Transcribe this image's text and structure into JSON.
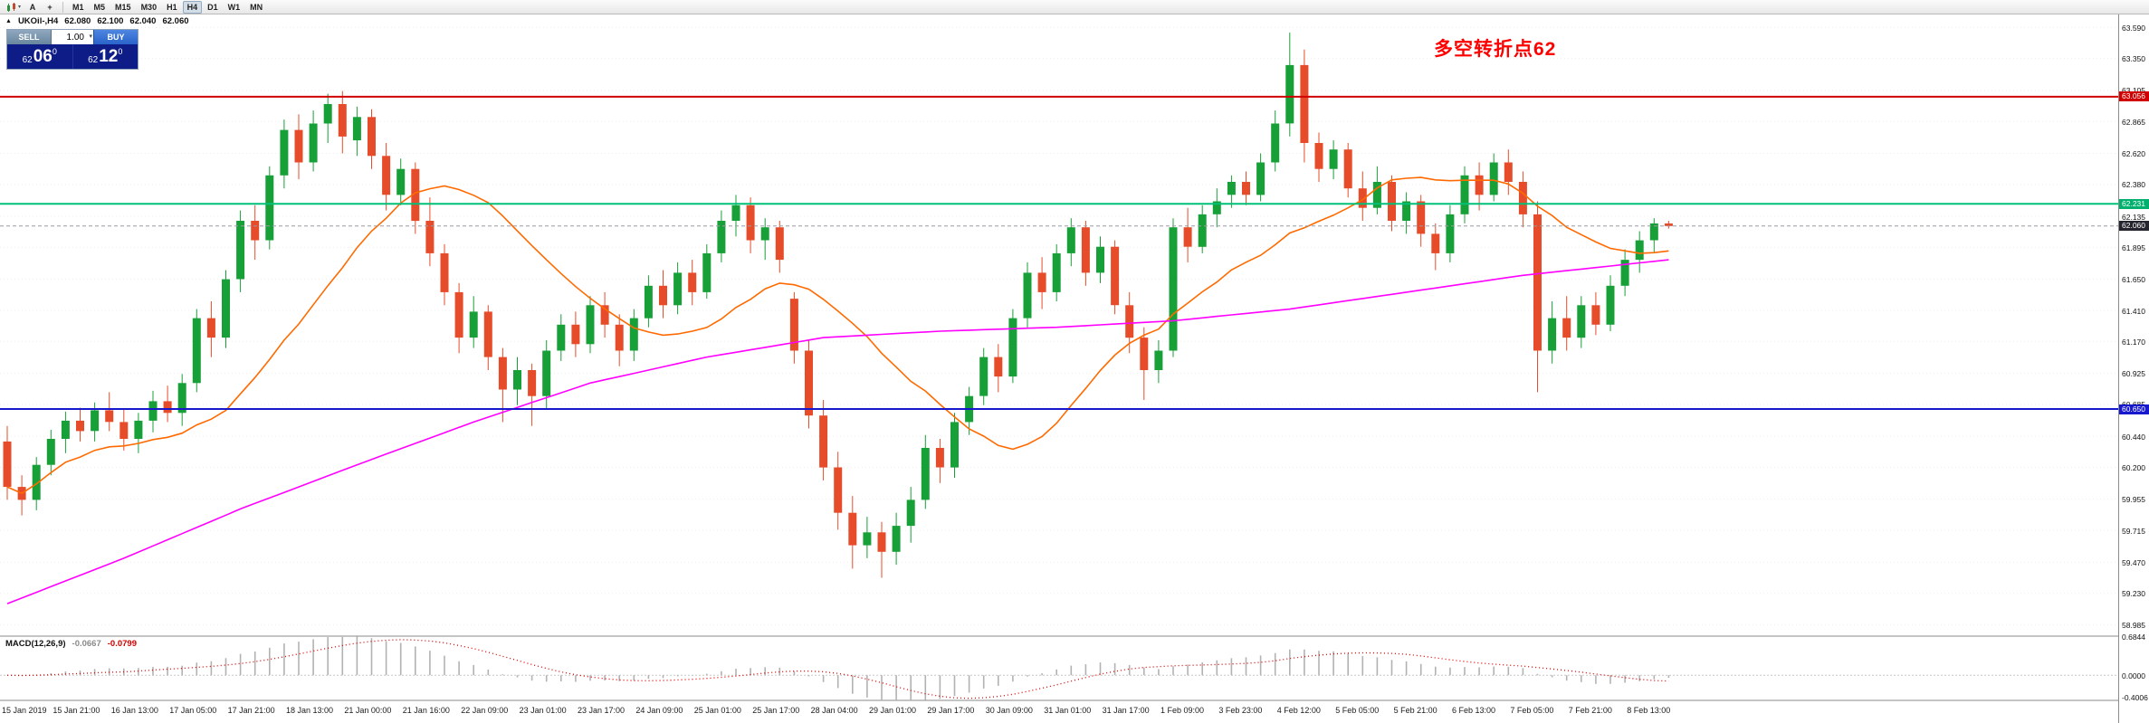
{
  "toolbar": {
    "timeframes": [
      "M1",
      "M5",
      "M15",
      "M30",
      "H1",
      "H4",
      "D1",
      "W1",
      "MN"
    ],
    "active_timeframe": "H4",
    "cursor_icon_label": "A",
    "crosshair_icon_label": "+",
    "chart_dropdown_caret": "▾"
  },
  "symbol_header": {
    "marker": "▲",
    "symbol": "UKOil-,H4",
    "open": "62.080",
    "high": "62.100",
    "low": "62.040",
    "close": "62.060"
  },
  "trade_panel": {
    "sell_label": "SELL",
    "buy_label": "BUY",
    "lot_size": "1.00",
    "spinner": "▾",
    "sell_price": {
      "small": "62",
      "big": "06",
      "sup": "0"
    },
    "buy_price": {
      "small": "62",
      "big": "12",
      "sup": "0"
    }
  },
  "annotation": {
    "text": "多空转折点62",
    "color": "#ff0000"
  },
  "price_axis": {
    "labels": [
      "63.590",
      "63.350",
      "63.105",
      "62.865",
      "62.620",
      "62.380",
      "62.135",
      "61.895",
      "61.650",
      "61.410",
      "61.170",
      "60.925",
      "60.685",
      "60.440",
      "60.200",
      "59.955",
      "59.715",
      "59.470",
      "59.230",
      "58.985"
    ]
  },
  "time_axis": {
    "labels": [
      "15 Jan 2019",
      "15 Jan 21:00",
      "16 Jan 13:00",
      "17 Jan 05:00",
      "17 Jan 21:00",
      "18 Jan 13:00",
      "21 Jan 00:00",
      "21 Jan 16:00",
      "22 Jan 09:00",
      "23 Jan 01:00",
      "23 Jan 17:00",
      "24 Jan 09:00",
      "25 Jan 01:00",
      "25 Jan 17:00",
      "28 Jan 04:00",
      "29 Jan 01:00",
      "29 Jan 17:00",
      "30 Jan 09:00",
      "31 Jan 01:00",
      "31 Jan 17:00",
      "1 Feb 09:00",
      "3 Feb 23:00",
      "4 Feb 12:00",
      "5 Feb 05:00",
      "5 Feb 21:00",
      "6 Feb 13:00",
      "7 Feb 05:00",
      "7 Feb 21:00",
      "8 Feb 13:00"
    ]
  },
  "hlines": [
    {
      "price": 63.056,
      "label": "63.056",
      "color": "#d10000",
      "badge": "#d10000",
      "width": 2,
      "style": "solid"
    },
    {
      "price": 62.231,
      "label": "62.231",
      "color": "#00c079",
      "badge": "#00b06e",
      "width": 2,
      "style": "solid"
    },
    {
      "price": 62.06,
      "label": "62.060",
      "color": "#9a9aa2",
      "badge": "#24242e",
      "width": 1,
      "style": "dashed"
    },
    {
      "price": 60.65,
      "label": "60.650",
      "color": "#1717cd",
      "badge": "#1717cd",
      "width": 2,
      "style": "solid"
    }
  ],
  "chart_data": {
    "type": "candlestick",
    "symbol": "UKOil",
    "timeframe": "H4",
    "price_range": [
      58.9,
      63.69
    ],
    "up_color": "#18a038",
    "down_color": "#e74c2a",
    "bars": [
      [
        60.4,
        60.52,
        59.95,
        60.05
      ],
      [
        60.05,
        60.14,
        59.83,
        59.95
      ],
      [
        59.95,
        60.28,
        59.87,
        60.22
      ],
      [
        60.22,
        60.49,
        60.14,
        60.42
      ],
      [
        60.42,
        60.63,
        60.31,
        60.56
      ],
      [
        60.56,
        60.66,
        60.4,
        60.48
      ],
      [
        60.48,
        60.7,
        60.4,
        60.64
      ],
      [
        60.64,
        60.78,
        60.48,
        60.55
      ],
      [
        60.55,
        60.65,
        60.33,
        60.42
      ],
      [
        60.42,
        60.62,
        60.31,
        60.56
      ],
      [
        60.56,
        60.79,
        60.47,
        60.71
      ],
      [
        60.71,
        60.83,
        60.55,
        60.62
      ],
      [
        60.62,
        60.92,
        60.52,
        60.85
      ],
      [
        60.85,
        61.42,
        60.78,
        61.35
      ],
      [
        61.35,
        61.48,
        61.05,
        61.2
      ],
      [
        61.2,
        61.72,
        61.12,
        61.65
      ],
      [
        61.65,
        62.18,
        61.55,
        62.1
      ],
      [
        62.1,
        62.22,
        61.8,
        61.95
      ],
      [
        61.95,
        62.52,
        61.88,
        62.45
      ],
      [
        62.45,
        62.88,
        62.35,
        62.8
      ],
      [
        62.8,
        62.92,
        62.42,
        62.55
      ],
      [
        62.55,
        62.95,
        62.48,
        62.85
      ],
      [
        62.85,
        63.08,
        62.7,
        63.0
      ],
      [
        63.0,
        63.1,
        62.62,
        62.75
      ],
      [
        62.72,
        62.98,
        62.6,
        62.9
      ],
      [
        62.9,
        62.96,
        62.5,
        62.6
      ],
      [
        62.6,
        62.7,
        62.18,
        62.3
      ],
      [
        62.3,
        62.58,
        62.22,
        62.5
      ],
      [
        62.5,
        62.55,
        62.0,
        62.1
      ],
      [
        62.1,
        62.28,
        61.75,
        61.85
      ],
      [
        61.85,
        61.92,
        61.45,
        61.55
      ],
      [
        61.55,
        61.62,
        61.08,
        61.2
      ],
      [
        61.2,
        61.52,
        61.12,
        61.4
      ],
      [
        61.4,
        61.45,
        60.95,
        61.05
      ],
      [
        61.05,
        61.12,
        60.55,
        60.8
      ],
      [
        60.8,
        61.05,
        60.68,
        60.95
      ],
      [
        60.95,
        61.0,
        60.52,
        60.75
      ],
      [
        60.75,
        61.18,
        60.65,
        61.1
      ],
      [
        61.1,
        61.38,
        61.02,
        61.3
      ],
      [
        61.3,
        61.4,
        61.05,
        61.15
      ],
      [
        61.15,
        61.52,
        61.08,
        61.45
      ],
      [
        61.45,
        61.55,
        61.2,
        61.3
      ],
      [
        61.3,
        61.38,
        60.98,
        61.1
      ],
      [
        61.1,
        61.42,
        61.02,
        61.35
      ],
      [
        61.35,
        61.68,
        61.28,
        61.6
      ],
      [
        61.6,
        61.72,
        61.35,
        61.45
      ],
      [
        61.45,
        61.78,
        61.38,
        61.7
      ],
      [
        61.7,
        61.8,
        61.45,
        61.55
      ],
      [
        61.55,
        61.92,
        61.5,
        61.85
      ],
      [
        61.85,
        62.18,
        61.78,
        62.1
      ],
      [
        62.1,
        62.3,
        61.98,
        62.22
      ],
      [
        62.22,
        62.28,
        61.85,
        61.95
      ],
      [
        61.95,
        62.12,
        61.8,
        62.05
      ],
      [
        62.05,
        62.1,
        61.7,
        61.8
      ],
      [
        61.5,
        61.55,
        61.0,
        61.1
      ],
      [
        61.1,
        61.18,
        60.5,
        60.6
      ],
      [
        60.6,
        60.72,
        60.1,
        60.2
      ],
      [
        60.2,
        60.32,
        59.72,
        59.85
      ],
      [
        59.85,
        59.98,
        59.42,
        59.6
      ],
      [
        59.6,
        59.82,
        59.5,
        59.7
      ],
      [
        59.7,
        59.78,
        59.35,
        59.55
      ],
      [
        59.55,
        59.85,
        59.45,
        59.75
      ],
      [
        59.75,
        60.05,
        59.62,
        59.95
      ],
      [
        59.95,
        60.45,
        59.88,
        60.35
      ],
      [
        60.35,
        60.42,
        60.08,
        60.2
      ],
      [
        60.2,
        60.62,
        60.12,
        60.55
      ],
      [
        60.55,
        60.82,
        60.45,
        60.75
      ],
      [
        60.75,
        61.12,
        60.68,
        61.05
      ],
      [
        61.05,
        61.15,
        60.78,
        60.9
      ],
      [
        60.9,
        61.42,
        60.85,
        61.35
      ],
      [
        61.35,
        61.78,
        61.28,
        61.7
      ],
      [
        61.7,
        61.82,
        61.42,
        61.55
      ],
      [
        61.55,
        61.92,
        61.48,
        61.85
      ],
      [
        61.85,
        62.12,
        61.75,
        62.05
      ],
      [
        62.05,
        62.1,
        61.6,
        61.7
      ],
      [
        61.7,
        61.98,
        61.62,
        61.9
      ],
      [
        61.9,
        61.95,
        61.38,
        61.45
      ],
      [
        61.45,
        61.55,
        61.08,
        61.2
      ],
      [
        61.2,
        61.28,
        60.72,
        60.95
      ],
      [
        60.95,
        61.18,
        60.85,
        61.1
      ],
      [
        61.1,
        62.12,
        61.05,
        62.05
      ],
      [
        62.05,
        62.2,
        61.78,
        61.9
      ],
      [
        61.9,
        62.22,
        61.85,
        62.15
      ],
      [
        62.15,
        62.35,
        62.05,
        62.25
      ],
      [
        62.3,
        62.45,
        62.2,
        62.4
      ],
      [
        62.4,
        62.48,
        62.22,
        62.3
      ],
      [
        62.3,
        62.62,
        62.25,
        62.55
      ],
      [
        62.55,
        62.95,
        62.48,
        62.85
      ],
      [
        62.85,
        63.55,
        62.75,
        63.3
      ],
      [
        63.3,
        63.42,
        62.55,
        62.7
      ],
      [
        62.7,
        62.78,
        62.4,
        62.5
      ],
      [
        62.5,
        62.72,
        62.42,
        62.65
      ],
      [
        62.65,
        62.7,
        62.28,
        62.35
      ],
      [
        62.35,
        62.48,
        62.1,
        62.2
      ],
      [
        62.2,
        62.52,
        62.15,
        62.4
      ],
      [
        62.4,
        62.45,
        62.02,
        62.1
      ],
      [
        62.1,
        62.32,
        62.0,
        62.25
      ],
      [
        62.25,
        62.3,
        61.9,
        62.0
      ],
      [
        62.0,
        62.08,
        61.72,
        61.85
      ],
      [
        61.85,
        62.22,
        61.78,
        62.15
      ],
      [
        62.15,
        62.52,
        62.08,
        62.45
      ],
      [
        62.45,
        62.55,
        62.18,
        62.3
      ],
      [
        62.3,
        62.62,
        62.25,
        62.55
      ],
      [
        62.55,
        62.65,
        62.3,
        62.4
      ],
      [
        62.4,
        62.48,
        62.05,
        62.15
      ],
      [
        62.15,
        62.25,
        60.78,
        61.1
      ],
      [
        61.1,
        61.48,
        61.0,
        61.35
      ],
      [
        61.35,
        61.52,
        61.1,
        61.2
      ],
      [
        61.2,
        61.52,
        61.12,
        61.45
      ],
      [
        61.45,
        61.55,
        61.22,
        61.3
      ],
      [
        61.3,
        61.68,
        61.25,
        61.6
      ],
      [
        61.6,
        61.88,
        61.52,
        61.8
      ],
      [
        61.8,
        62.02,
        61.7,
        61.95
      ],
      [
        61.95,
        62.12,
        61.85,
        62.08
      ],
      [
        62.08,
        62.1,
        62.04,
        62.06
      ]
    ],
    "ma_fast": {
      "color": "#ff6a00",
      "period": 16
    },
    "ma_slow": {
      "color": "#ff00ff",
      "points": [
        [
          0,
          59.15
        ],
        [
          8,
          59.5
        ],
        [
          16,
          59.88
        ],
        [
          24,
          60.22
        ],
        [
          32,
          60.55
        ],
        [
          40,
          60.85
        ],
        [
          48,
          61.05
        ],
        [
          56,
          61.2
        ],
        [
          64,
          61.25
        ],
        [
          72,
          61.28
        ],
        [
          80,
          61.33
        ],
        [
          88,
          61.42
        ],
        [
          96,
          61.55
        ],
        [
          104,
          61.68
        ],
        [
          114,
          61.8
        ]
      ]
    },
    "macd": {
      "label": "MACD(12,26,9)",
      "value": "-0.0667",
      "signal_value": "-0.0799",
      "axis_max": "0.6844",
      "axis_zero": "0.0000",
      "axis_min": "-0.4006",
      "range": [
        -0.45,
        0.7
      ],
      "histogram_color": "#b2b2b2",
      "signal_color": "#e00000"
    }
  }
}
